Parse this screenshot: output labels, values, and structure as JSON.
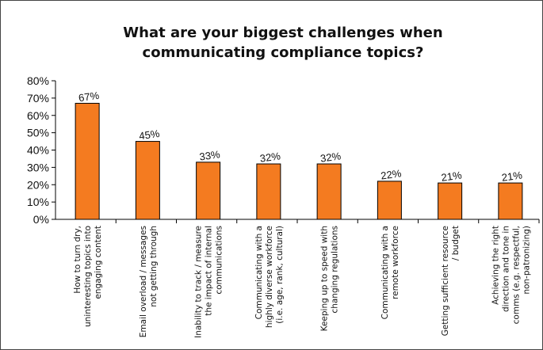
{
  "chart_data": {
    "type": "bar",
    "title_lines": [
      "What are your biggest challenges when",
      "communicating compliance topics?"
    ],
    "categories": [
      [
        "How to turn dry,",
        "uninteresting topics into",
        "engaging content"
      ],
      [
        "Email overload / messages",
        "not getting through"
      ],
      [
        "Inability to track / measure",
        "the impact of internal",
        "communications"
      ],
      [
        "Communicating with a",
        "highly diverse workforce",
        "(i.e. age, rank, cultural)"
      ],
      [
        "Keeping up to speed with",
        "changing regulations"
      ],
      [
        "Communicating with a",
        "remote workforce"
      ],
      [
        "Getting sufficient resource",
        "/ budget"
      ],
      [
        "Achieving the right",
        "direction and tone in",
        "comms (e.g. respectful,",
        "non-patronizing)"
      ]
    ],
    "values": [
      67,
      45,
      33,
      32,
      32,
      22,
      21,
      21
    ],
    "data_labels": [
      "67%",
      "45%",
      "33%",
      "32%",
      "32%",
      "22%",
      "21%",
      "21%"
    ],
    "y_ticks": [
      "0%",
      "10%",
      "20%",
      "30%",
      "40%",
      "50%",
      "60%",
      "70%",
      "80%"
    ],
    "ylim": [
      0,
      80
    ],
    "grid": false,
    "legend": "none",
    "bar_color": "#f47b20",
    "bar_edge_color": "#000000"
  }
}
